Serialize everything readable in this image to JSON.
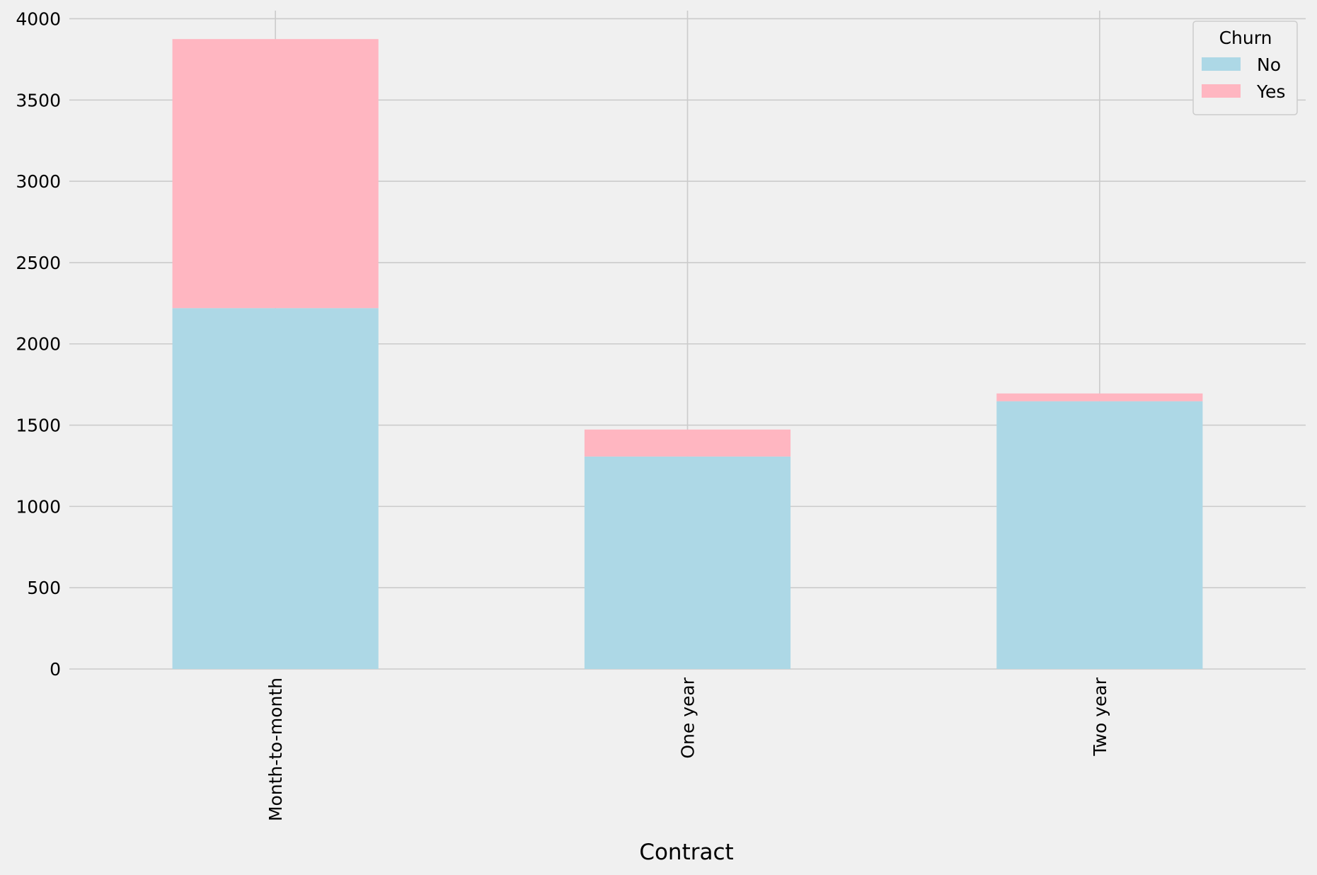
{
  "chart_data": {
    "type": "bar",
    "stacked": true,
    "title": "",
    "xlabel": "Contract",
    "ylabel": "",
    "categories": [
      "Month-to-month",
      "One year",
      "Two year"
    ],
    "series": [
      {
        "name": "No",
        "values": [
          2220,
          1307,
          1647
        ],
        "color": "#add8e6"
      },
      {
        "name": "Yes",
        "values": [
          1655,
          166,
          48
        ],
        "color": "#ffb6c1"
      }
    ],
    "ylim": [
      0,
      4050
    ],
    "yticks": [
      0,
      500,
      1000,
      1500,
      2000,
      2500,
      3000,
      3500,
      4000
    ],
    "grid": true,
    "legend": {
      "title": "Churn",
      "placement": "top-right"
    },
    "colors": {
      "background": "#f0f0f0",
      "grid": "#cbcbcb"
    }
  }
}
